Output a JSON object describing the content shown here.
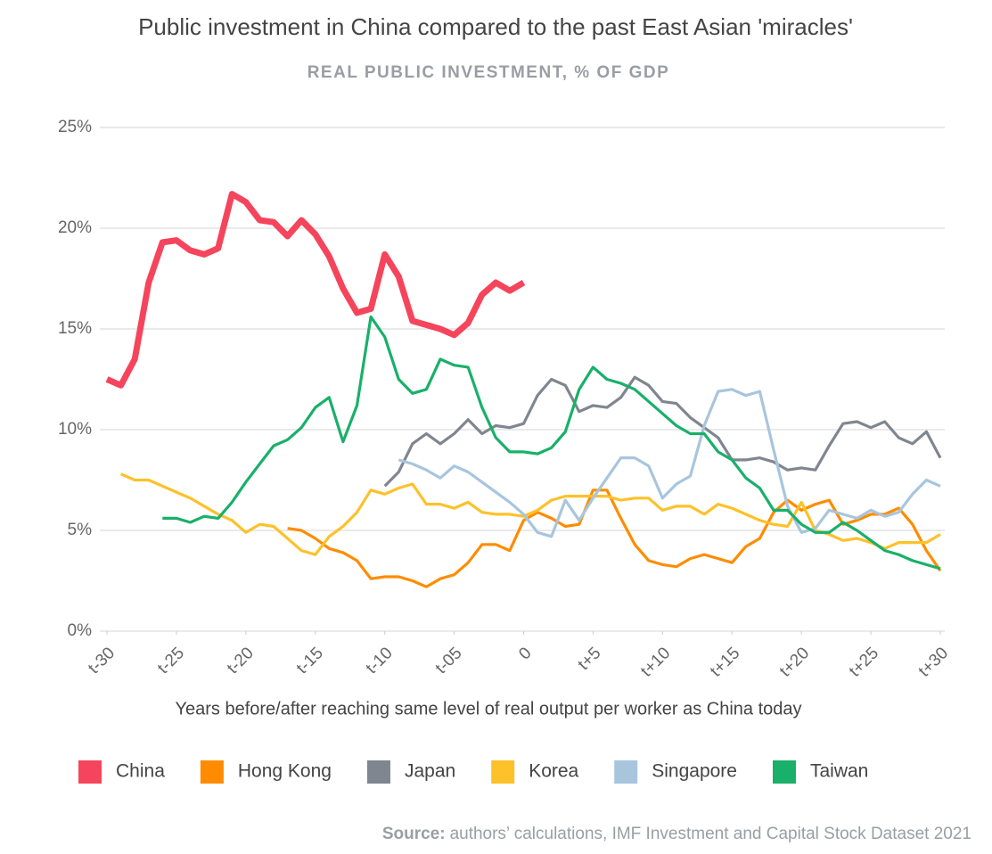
{
  "chart_data": {
    "type": "line",
    "title": "Public investment in China compared to the past East Asian 'miracles'",
    "subtitle": "REAL PUBLIC INVESTMENT, % OF GDP",
    "x_label": "Years before/after reaching same level of real output per worker as China today",
    "source_label": "Source:",
    "source": "authors’ calculations, IMF Investment and Capital Stock Dataset 2021",
    "x": [
      -30,
      -29,
      -28,
      -27,
      -26,
      -25,
      -24,
      -23,
      -22,
      -21,
      -20,
      -19,
      -18,
      -17,
      -16,
      -15,
      -14,
      -13,
      -12,
      -11,
      -10,
      -9,
      -8,
      -7,
      -6,
      -5,
      -4,
      -3,
      -2,
      -1,
      0,
      1,
      2,
      3,
      4,
      5,
      6,
      7,
      8,
      9,
      10,
      11,
      12,
      13,
      14,
      15,
      16,
      17,
      18,
      19,
      20,
      21,
      22,
      23,
      24,
      25,
      26,
      27,
      28,
      29,
      30
    ],
    "xlim": [
      -30,
      30
    ],
    "xticks": [
      {
        "value": -30,
        "label": "t-30"
      },
      {
        "value": -25,
        "label": "t-25"
      },
      {
        "value": -20,
        "label": "t-20"
      },
      {
        "value": -15,
        "label": "t-15"
      },
      {
        "value": -10,
        "label": "t-10"
      },
      {
        "value": -5,
        "label": "t-05"
      },
      0,
      {
        "value": 5,
        "label": "t+5"
      },
      {
        "value": 10,
        "label": "t+10"
      },
      {
        "value": 15,
        "label": "t+15"
      },
      {
        "value": 20,
        "label": "t+20"
      },
      {
        "value": 25,
        "label": "t+25"
      },
      {
        "value": 30,
        "label": "t+30"
      }
    ],
    "ylim": [
      0,
      25
    ],
    "yticks": [
      {
        "value": 0,
        "label": "0%"
      },
      {
        "value": 5,
        "label": "5%"
      },
      {
        "value": 10,
        "label": "10%"
      },
      {
        "value": 15,
        "label": "15%"
      },
      {
        "value": 20,
        "label": "20%"
      },
      {
        "value": 25,
        "label": "25%"
      }
    ],
    "grid": true,
    "legend": "bottom",
    "series": [
      {
        "name": "China",
        "color": "#f5455c",
        "values": [
          12.5,
          12.2,
          13.5,
          17.3,
          19.3,
          19.4,
          18.9,
          18.7,
          19.0,
          21.7,
          21.3,
          20.4,
          20.3,
          19.6,
          20.4,
          19.7,
          18.6,
          17.0,
          15.8,
          16.0,
          18.7,
          17.6,
          15.4,
          15.2,
          15.0,
          14.7,
          15.3,
          16.7,
          17.3,
          16.9,
          17.3,
          null,
          null,
          null,
          null,
          null,
          null,
          null,
          null,
          null,
          null,
          null,
          null,
          null,
          null,
          null,
          null,
          null,
          null,
          null,
          null,
          null,
          null,
          null,
          null,
          null,
          null,
          null,
          null,
          null,
          null
        ]
      },
      {
        "name": "Hong Kong",
        "color": "#ff8c00",
        "values": [
          null,
          null,
          null,
          null,
          null,
          null,
          null,
          null,
          null,
          null,
          null,
          null,
          null,
          5.1,
          5.0,
          4.6,
          4.1,
          3.9,
          3.5,
          2.6,
          2.7,
          2.7,
          2.5,
          2.2,
          2.6,
          2.8,
          3.4,
          4.3,
          4.3,
          4.0,
          5.5,
          5.9,
          5.6,
          5.2,
          5.3,
          7.0,
          7.0,
          5.6,
          4.3,
          3.5,
          3.3,
          3.2,
          3.6,
          3.8,
          3.6,
          3.4,
          4.2,
          4.6,
          5.9,
          6.5,
          6.0,
          6.3,
          6.5,
          5.3,
          5.5,
          5.8,
          5.8,
          6.1,
          5.3,
          4.0,
          3.0
        ]
      },
      {
        "name": "Japan",
        "color": "#80868f",
        "values": [
          null,
          null,
          null,
          null,
          null,
          null,
          null,
          null,
          null,
          null,
          null,
          null,
          null,
          null,
          null,
          null,
          null,
          null,
          null,
          null,
          7.2,
          7.9,
          9.3,
          9.8,
          9.3,
          9.8,
          10.5,
          9.8,
          10.2,
          10.1,
          10.3,
          11.7,
          12.5,
          12.2,
          10.9,
          11.2,
          11.1,
          11.6,
          12.6,
          12.2,
          11.4,
          11.3,
          10.6,
          10.1,
          9.6,
          8.5,
          8.5,
          8.6,
          8.4,
          8.0,
          8.1,
          8.0,
          9.2,
          10.3,
          10.4,
          10.1,
          10.4,
          9.6,
          9.3,
          9.9,
          8.6
        ]
      },
      {
        "name": "Korea",
        "color": "#fdc12a",
        "values": [
          null,
          7.8,
          7.5,
          7.5,
          7.2,
          6.9,
          6.6,
          6.2,
          5.8,
          5.5,
          4.9,
          5.3,
          5.2,
          4.6,
          4.0,
          3.8,
          4.7,
          5.2,
          5.9,
          7.0,
          6.8,
          7.1,
          7.3,
          6.3,
          6.3,
          6.1,
          6.4,
          5.9,
          5.8,
          5.8,
          5.7,
          6.0,
          6.5,
          6.7,
          6.7,
          6.7,
          6.7,
          6.5,
          6.6,
          6.6,
          6.0,
          6.2,
          6.2,
          5.8,
          6.3,
          6.1,
          5.8,
          5.5,
          5.3,
          5.2,
          6.4,
          5.0,
          4.8,
          4.5,
          4.6,
          4.4,
          4.1,
          4.4,
          4.4,
          4.4,
          4.8
        ]
      },
      {
        "name": "Singapore",
        "color": "#a8c5de",
        "values": [
          null,
          null,
          null,
          null,
          null,
          null,
          null,
          null,
          null,
          null,
          null,
          null,
          null,
          null,
          null,
          null,
          null,
          null,
          null,
          null,
          null,
          8.5,
          8.3,
          8.0,
          7.6,
          8.2,
          7.9,
          7.4,
          6.9,
          6.4,
          5.8,
          4.9,
          4.7,
          6.5,
          5.5,
          6.6,
          7.6,
          8.6,
          8.6,
          8.2,
          6.6,
          7.3,
          7.7,
          10.2,
          11.9,
          12.0,
          11.7,
          11.9,
          9.0,
          6.2,
          4.9,
          5.1,
          6.0,
          5.8,
          5.6,
          6.0,
          5.7,
          5.9,
          6.8,
          7.5,
          7.2
        ]
      },
      {
        "name": "Taiwan",
        "color": "#19b06a",
        "values": [
          null,
          null,
          null,
          null,
          5.6,
          5.6,
          5.4,
          5.7,
          5.6,
          6.4,
          7.4,
          8.3,
          9.2,
          9.5,
          10.1,
          11.1,
          11.6,
          9.4,
          11.2,
          15.6,
          14.6,
          12.5,
          11.8,
          12.0,
          13.5,
          13.2,
          13.1,
          11.1,
          9.6,
          8.9,
          8.9,
          8.8,
          9.1,
          9.9,
          12.0,
          13.1,
          12.5,
          12.3,
          12.0,
          11.4,
          10.8,
          10.2,
          9.8,
          9.8,
          8.9,
          8.5,
          7.6,
          7.1,
          6.0,
          6.0,
          5.3,
          4.9,
          4.9,
          5.4,
          5.0,
          4.5,
          4.0,
          3.8,
          3.5,
          3.3,
          3.1
        ]
      }
    ]
  }
}
